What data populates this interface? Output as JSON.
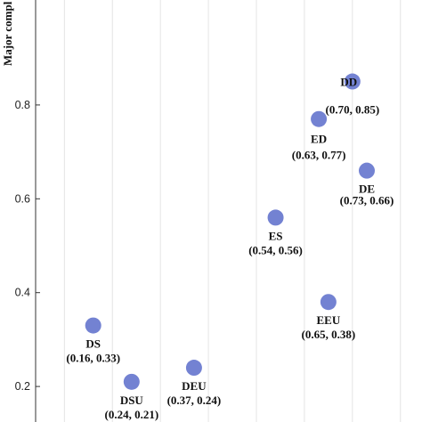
{
  "chart_data": {
    "type": "scatter",
    "title": "",
    "xlabel": "",
    "ylabel": "Major compl",
    "ylim": [
      0.095,
      0.995
    ],
    "xlim": [
      0.04,
      0.845
    ],
    "yticks": [
      0.2,
      0.4,
      0.6,
      0.8
    ],
    "grid": "vertical",
    "marker_color": "#7382d2",
    "points": [
      {
        "label": "DS",
        "coords": "(0.16, 0.33)",
        "x": 0.16,
        "y": 0.33
      },
      {
        "label": "DSU",
        "coords": "(0.24, 0.21)",
        "x": 0.24,
        "y": 0.21
      },
      {
        "label": "DEU",
        "coords": "(0.37, 0.24)",
        "x": 0.37,
        "y": 0.24
      },
      {
        "label": "ES",
        "coords": "(0.54, 0.56)",
        "x": 0.54,
        "y": 0.56
      },
      {
        "label": "EEU",
        "coords": "(0.65, 0.38)",
        "x": 0.65,
        "y": 0.38
      },
      {
        "label": "ED",
        "coords": "(0.63, 0.77)",
        "x": 0.63,
        "y": 0.77
      },
      {
        "label": "DD",
        "coords": "(0.70, 0.85)",
        "x": 0.7,
        "y": 0.85
      },
      {
        "label": "DE",
        "coords": "(0.73, 0.66)",
        "x": 0.73,
        "y": 0.66
      }
    ]
  }
}
